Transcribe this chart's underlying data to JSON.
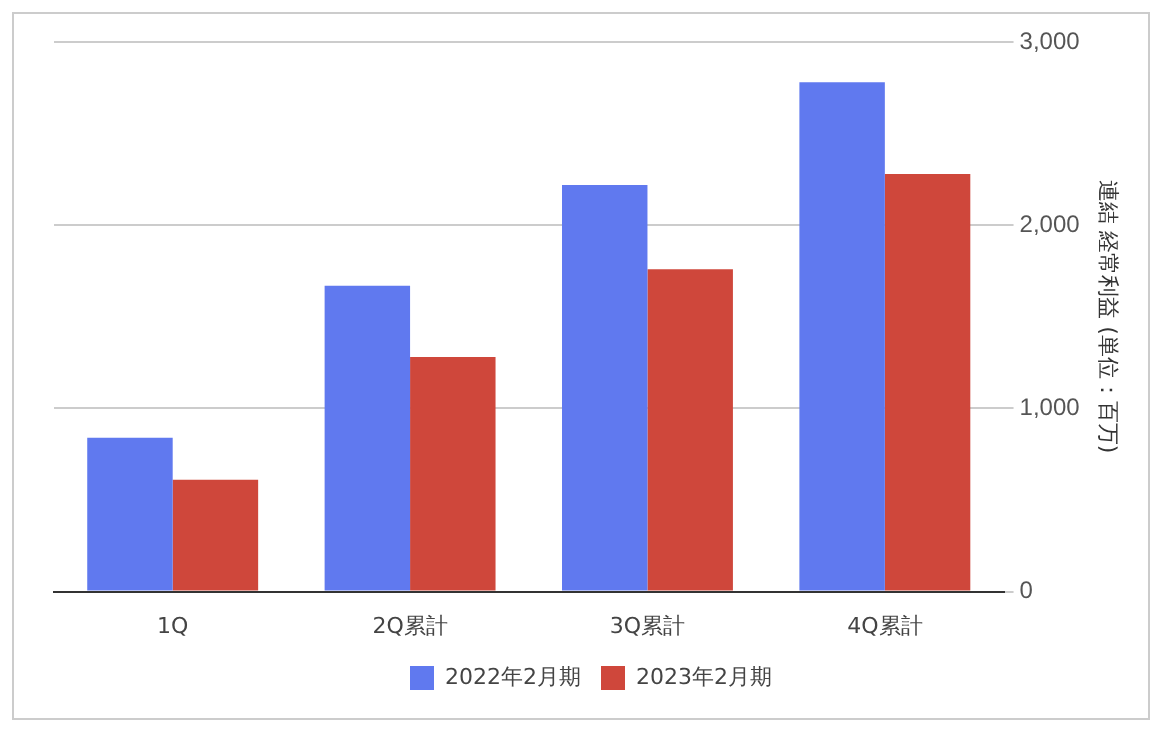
{
  "chart_data": {
    "type": "bar",
    "categories": [
      "1Q",
      "2Q累計",
      "3Q累計",
      "4Q累計"
    ],
    "series": [
      {
        "name": "2022年2月期",
        "color": "#6079ef",
        "values": [
          840,
          1670,
          2220,
          2780
        ]
      },
      {
        "name": "2023年2月期",
        "color": "#cf473b",
        "values": [
          610,
          1280,
          1760,
          2280
        ]
      }
    ],
    "ylabel": "連結 経常利益 (単位：百万)",
    "ylim": [
      0,
      3000
    ],
    "yticks": [
      {
        "value": 0,
        "label": "0"
      },
      {
        "value": 1000,
        "label": "1,000"
      },
      {
        "value": 2000,
        "label": "2,000"
      },
      {
        "value": 3000,
        "label": "3,000"
      }
    ],
    "grid": "y",
    "legend": "bottom"
  }
}
